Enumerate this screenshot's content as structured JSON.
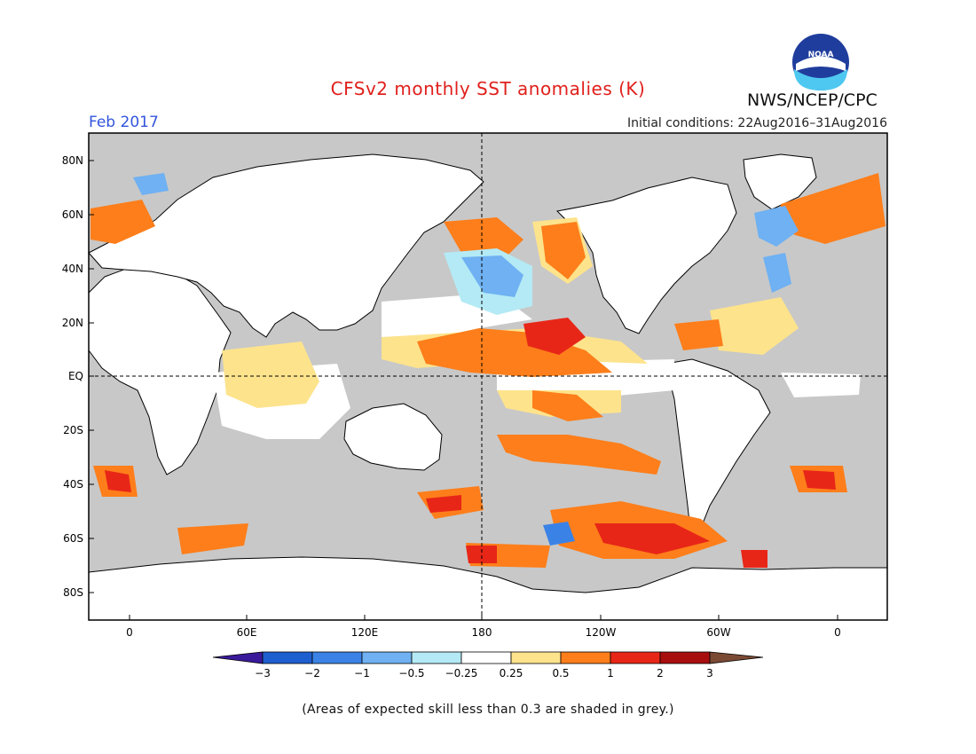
{
  "title": "CFSv2 monthly SST anomalies (K)",
  "agency": "NWS/NCEP/CPC",
  "logo_text": "NOAA",
  "valid_month": "Feb 2017",
  "initial_conditions": "Initial conditions: 22Aug2016–31Aug2016",
  "footnote": "(Areas of expected skill less than 0.3 are shaded in grey.)",
  "map": {
    "lat_labels": [
      "80N",
      "60N",
      "40N",
      "20N",
      "EQ",
      "20S",
      "40S",
      "60S",
      "80S"
    ],
    "lon_labels": [
      "0",
      "60E",
      "120E",
      "180",
      "120W",
      "60W",
      "0"
    ],
    "grey_fill": "#c8c8c8",
    "land_fill": "#ffffff"
  },
  "colorbar": {
    "ticks": [
      "−3",
      "−2",
      "−1",
      "−0.5",
      "−0.25",
      "0.25",
      "0.5",
      "1",
      "2",
      "3"
    ],
    "colors": [
      "#3a1a9a",
      "#1e5fd0",
      "#3b82e6",
      "#6fb1f2",
      "#b4eaf5",
      "#ffffff",
      "#fde38c",
      "#fd7e1a",
      "#e82618",
      "#a80e0e",
      "#7b4a34"
    ]
  }
}
